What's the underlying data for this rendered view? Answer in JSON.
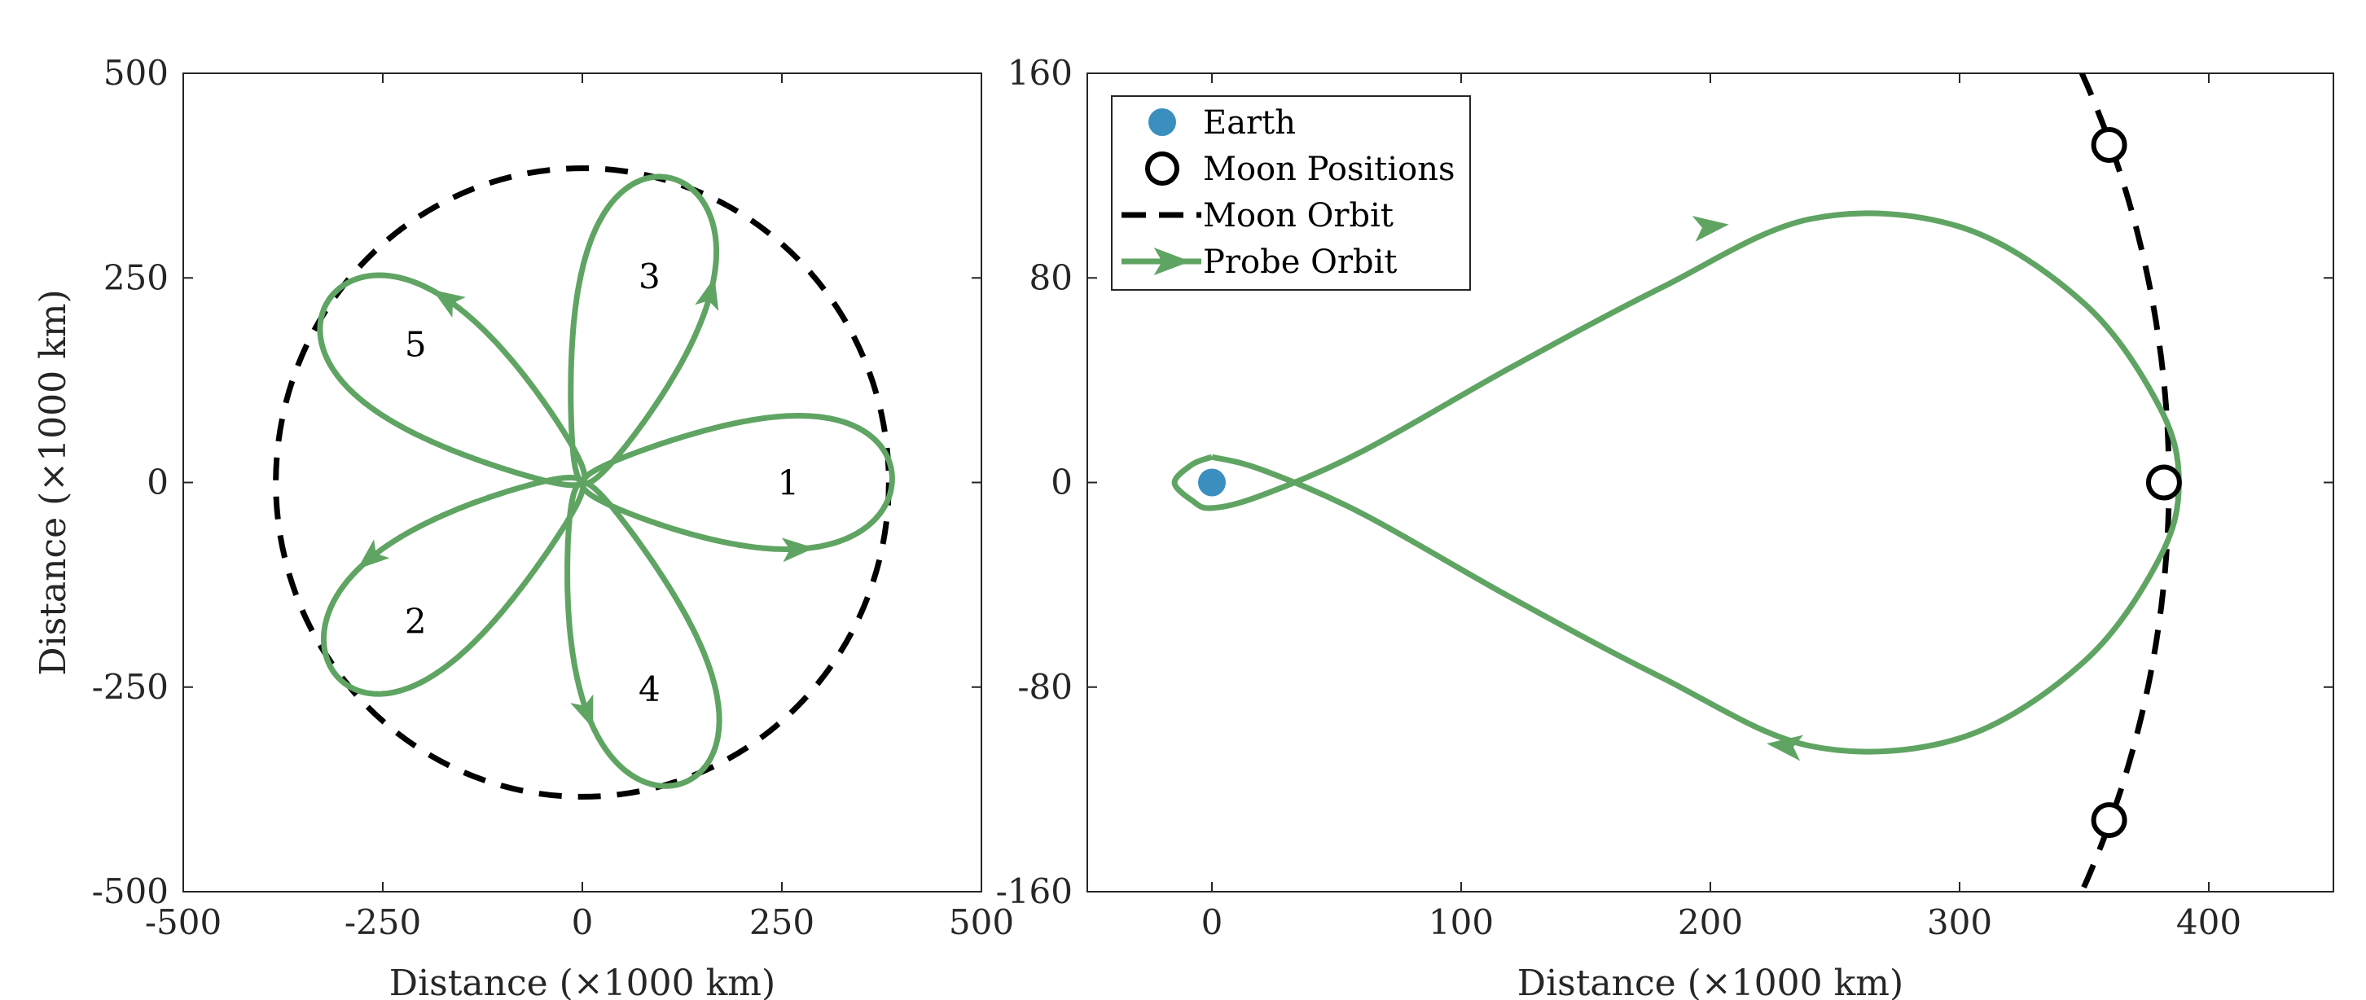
{
  "colors": {
    "earth": "#3a8fbf",
    "moon_orbit": "#000000",
    "probe_orbit": "#5fa463",
    "axes": "#262626"
  },
  "chart_data": [
    {
      "type": "line",
      "xlabel": "Distance (×1000 km)",
      "ylabel": "Distance (×1000 km)",
      "xlim": [
        -500,
        500
      ],
      "ylim": [
        -500,
        500
      ],
      "xticks": [
        "-500",
        "-250",
        "0",
        "250",
        "500"
      ],
      "yticks": [
        "-500",
        "-250",
        "0",
        "250",
        "500"
      ],
      "grid": false,
      "moon_orbit_radius": 384,
      "petal_labels": [
        {
          "text": "1",
          "x": 258,
          "y": 0
        },
        {
          "text": "2",
          "x": -209,
          "y": -169
        },
        {
          "text": "3",
          "x": 84,
          "y": 252
        },
        {
          "text": "4",
          "x": 84,
          "y": -252
        },
        {
          "text": "5",
          "x": -209,
          "y": 169
        }
      ],
      "probe_petals": [
        {
          "name": "1",
          "angle_deg": 0
        },
        {
          "name": "2",
          "angle_deg": -144
        },
        {
          "name": "3",
          "angle_deg": 72
        },
        {
          "name": "4",
          "angle_deg": -72
        },
        {
          "name": "5",
          "angle_deg": 144
        }
      ]
    },
    {
      "type": "line",
      "xlabel": "Distance (×1000 km)",
      "ylabel": "",
      "xlim": [
        -50,
        450
      ],
      "ylim": [
        -160,
        160
      ],
      "xticks": [
        "0",
        "100",
        "200",
        "300",
        "400"
      ],
      "yticks": [
        "-160",
        "-80",
        "0",
        "80",
        "160"
      ],
      "grid": false,
      "legend": {
        "location": "top-left",
        "entries": [
          "Earth",
          "Moon Positions",
          "Moon Orbit",
          "Probe Orbit"
        ]
      },
      "earth": {
        "x": 0,
        "y": 0
      },
      "moon_positions": [
        {
          "x": 360,
          "y": 132
        },
        {
          "x": 382,
          "y": 0
        },
        {
          "x": 360,
          "y": -132
        }
      ],
      "moon_orbit_radius": 384,
      "probe_orbit": {
        "x": [
          0,
          20,
          60,
          120,
          180,
          240,
          300,
          350,
          380,
          388,
          380,
          350,
          300,
          240,
          180,
          120,
          60,
          20,
          0,
          -8,
          -15,
          -8,
          0
        ],
        "y": [
          10,
          5,
          -12,
          -45,
          -76,
          -103,
          -100,
          -70,
          -30,
          0,
          30,
          70,
          100,
          103,
          76,
          45,
          12,
          -5,
          -10,
          -7,
          0,
          7,
          10
        ]
      }
    }
  ]
}
